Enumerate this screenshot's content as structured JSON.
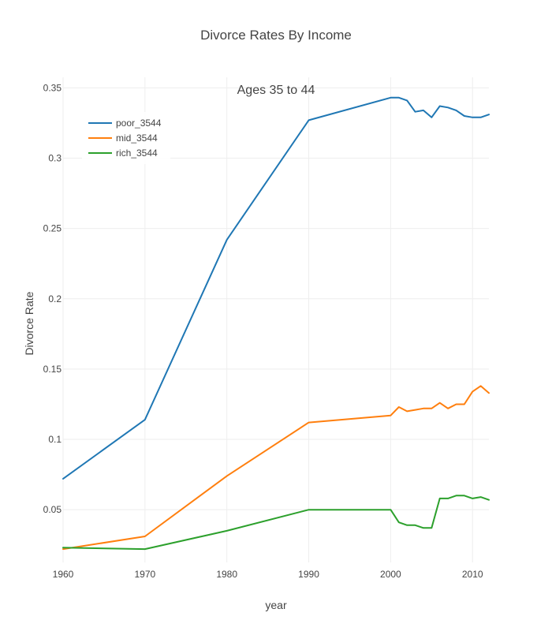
{
  "chart_data": {
    "type": "line",
    "title": "Divorce Rates By Income",
    "annotation": "Ages 35 to 44",
    "xlabel": "year",
    "ylabel": "Divorce Rate",
    "xlim": [
      1960,
      2012
    ],
    "ylim": [
      0.0125,
      0.3575
    ],
    "x_ticks": [
      1960,
      1970,
      1980,
      1990,
      2000,
      2010
    ],
    "x_tick_labels": [
      "1960",
      "1970",
      "1980",
      "1990",
      "2000",
      "2010"
    ],
    "y_ticks": [
      0.05,
      0.1,
      0.15,
      0.2,
      0.25,
      0.3,
      0.35
    ],
    "y_tick_labels": [
      "0.05",
      "0.1",
      "0.15",
      "0.2",
      "0.25",
      "0.3",
      "0.35"
    ],
    "grid": true,
    "legend_position": "top-left",
    "series": [
      {
        "name": "poor_3544",
        "color": "#1f77b4",
        "x": [
          1960,
          1970,
          1980,
          1990,
          2000,
          2001,
          2002,
          2003,
          2004,
          2005,
          2006,
          2007,
          2008,
          2009,
          2010,
          2011,
          2012
        ],
        "y": [
          0.072,
          0.114,
          0.242,
          0.327,
          0.343,
          0.343,
          0.341,
          0.333,
          0.334,
          0.329,
          0.337,
          0.336,
          0.334,
          0.33,
          0.329,
          0.329,
          0.331
        ]
      },
      {
        "name": "mid_3544",
        "color": "#ff7f0e",
        "x": [
          1960,
          1970,
          1980,
          1990,
          2000,
          2001,
          2002,
          2003,
          2004,
          2005,
          2006,
          2007,
          2008,
          2009,
          2010,
          2011,
          2012
        ],
        "y": [
          0.022,
          0.031,
          0.074,
          0.112,
          0.117,
          0.123,
          0.12,
          0.121,
          0.122,
          0.122,
          0.126,
          0.122,
          0.125,
          0.125,
          0.134,
          0.138,
          0.133
        ]
      },
      {
        "name": "rich_3544",
        "color": "#2ca02c",
        "x": [
          1960,
          1970,
          1980,
          1990,
          2000,
          2001,
          2002,
          2003,
          2004,
          2005,
          2006,
          2007,
          2008,
          2009,
          2010,
          2011,
          2012
        ],
        "y": [
          0.023,
          0.022,
          0.035,
          0.05,
          0.05,
          0.041,
          0.039,
          0.039,
          0.037,
          0.037,
          0.058,
          0.058,
          0.06,
          0.06,
          0.058,
          0.059,
          0.057
        ]
      }
    ]
  }
}
